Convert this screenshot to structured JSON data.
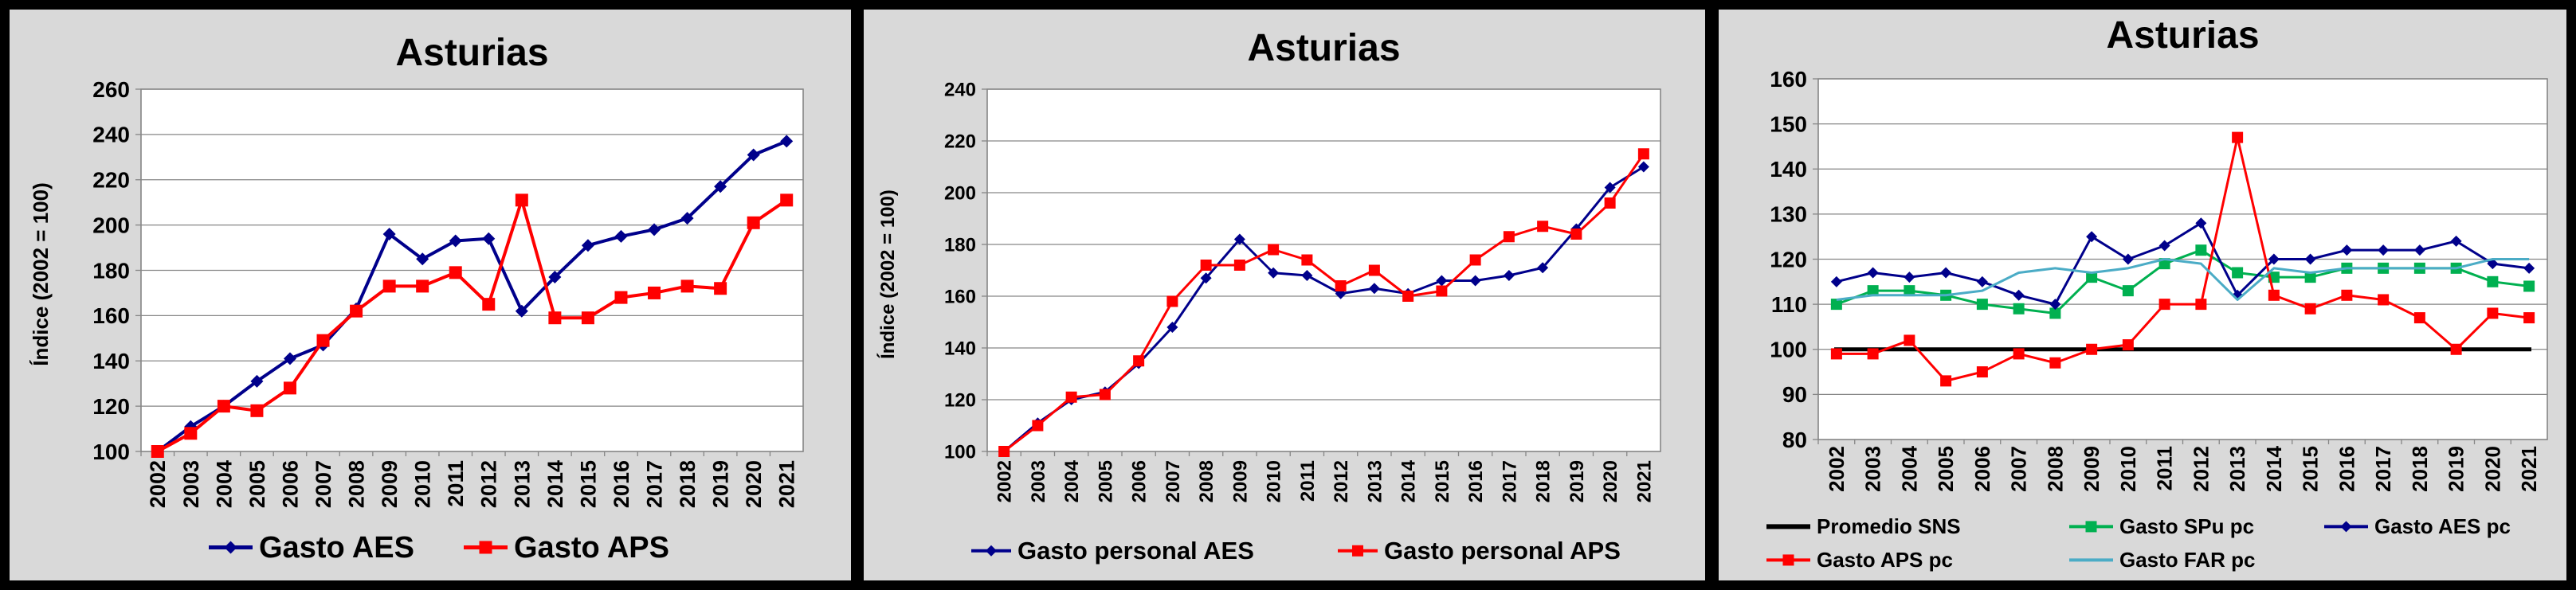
{
  "chart_data": [
    {
      "type": "line",
      "title": "Asturias",
      "xlabel": "",
      "ylabel": "Índice (2002 = 100)",
      "ylim": [
        100,
        260
      ],
      "ystep": 20,
      "grid": true,
      "legend": "bottom",
      "categories": [
        "2002",
        "2003",
        "2004",
        "2005",
        "2006",
        "2007",
        "2008",
        "2009",
        "2010",
        "2011",
        "2012",
        "2013",
        "2014",
        "2015",
        "2016",
        "2017",
        "2018",
        "2019",
        "2020",
        "2021"
      ],
      "series": [
        {
          "name": "Gasto AES",
          "color": "#00008b",
          "marker": "diamond",
          "values": [
            100,
            111,
            120,
            131,
            141,
            147,
            163,
            196,
            185,
            193,
            194,
            162,
            177,
            191,
            195,
            198,
            203,
            217,
            231,
            237
          ]
        },
        {
          "name": "Gasto APS",
          "color": "#ff0000",
          "marker": "square",
          "values": [
            100,
            108,
            120,
            118,
            128,
            149,
            162,
            173,
            173,
            179,
            165,
            211,
            159,
            159,
            168,
            170,
            173,
            172,
            201,
            211
          ]
        }
      ]
    },
    {
      "type": "line",
      "title": "Asturias",
      "xlabel": "",
      "ylabel": "Índice (2002 = 100)",
      "ylim": [
        100,
        240
      ],
      "ystep": 20,
      "grid": true,
      "legend": "bottom",
      "categories": [
        "2002",
        "2003",
        "2004",
        "2005",
        "2006",
        "2007",
        "2008",
        "2009",
        "2010",
        "2011",
        "2012",
        "2013",
        "2014",
        "2015",
        "2016",
        "2017",
        "2018",
        "2019",
        "2020",
        "2021"
      ],
      "series": [
        {
          "name": "Gasto personal AES",
          "color": "#00008b",
          "marker": "diamond",
          "values": [
            100,
            111,
            120,
            123,
            134,
            148,
            167,
            182,
            169,
            168,
            161,
            163,
            161,
            166,
            166,
            168,
            171,
            186,
            202,
            210
          ]
        },
        {
          "name": "Gasto personal APS",
          "color": "#ff0000",
          "marker": "square",
          "values": [
            100,
            110,
            121,
            122,
            135,
            158,
            172,
            172,
            178,
            174,
            164,
            170,
            160,
            162,
            174,
            183,
            187,
            184,
            196,
            215
          ]
        }
      ]
    },
    {
      "type": "line",
      "title": "Asturias",
      "xlabel": "",
      "ylabel": "",
      "ylim": [
        80,
        160
      ],
      "ystep": 10,
      "grid": true,
      "legend": "bottom",
      "categories": [
        "2002",
        "2003",
        "2004",
        "2005",
        "2006",
        "2007",
        "2008",
        "2009",
        "2010",
        "2011",
        "2012",
        "2013",
        "2014",
        "2015",
        "2016",
        "2017",
        "2018",
        "2019",
        "2020",
        "2021"
      ],
      "series": [
        {
          "name": "Promedio SNS",
          "color": "#000000",
          "marker": "none",
          "values": [
            100,
            100,
            100,
            100,
            100,
            100,
            100,
            100,
            100,
            100,
            100,
            100,
            100,
            100,
            100,
            100,
            100,
            100,
            100,
            100
          ]
        },
        {
          "name": "Gasto SPu pc",
          "color": "#00b050",
          "marker": "square",
          "values": [
            110,
            113,
            113,
            112,
            110,
            109,
            108,
            116,
            113,
            119,
            122,
            117,
            116,
            116,
            118,
            118,
            118,
            118,
            115,
            114
          ]
        },
        {
          "name": "Gasto AES pc",
          "color": "#00008b",
          "marker": "diamond",
          "values": [
            115,
            117,
            116,
            117,
            115,
            112,
            110,
            125,
            120,
            123,
            128,
            112,
            120,
            120,
            122,
            122,
            122,
            124,
            119,
            118
          ]
        },
        {
          "name": "Gasto APS pc",
          "color": "#ff0000",
          "marker": "square",
          "values": [
            99,
            99,
            102,
            93,
            95,
            99,
            97,
            100,
            101,
            110,
            110,
            147,
            112,
            109,
            112,
            111,
            107,
            100,
            108,
            107
          ]
        },
        {
          "name": "Gasto FAR pc",
          "color": "#4bacc6",
          "marker": "none",
          "values": [
            111,
            112,
            112,
            112,
            113,
            117,
            118,
            117,
            118,
            120,
            119,
            111,
            118,
            117,
            118,
            118,
            118,
            118,
            120,
            120
          ]
        }
      ]
    }
  ]
}
